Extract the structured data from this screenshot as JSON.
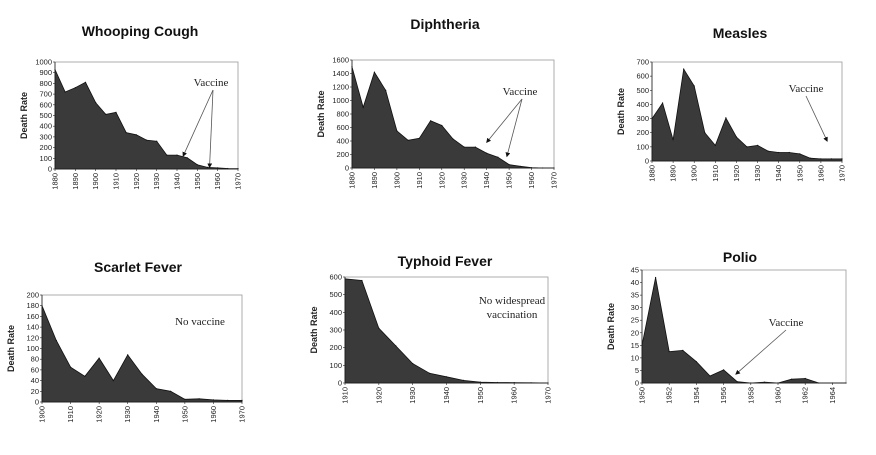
{
  "colors": {
    "area": "#3a3a3a",
    "edge": "#111111",
    "frame": "#999999",
    "arrow": "#555555"
  },
  "chart_data": [
    {
      "type": "area",
      "title": "Whooping Cough",
      "xlabel": "",
      "ylabel": "Death Rate",
      "x": [
        1880,
        1885,
        1890,
        1895,
        1900,
        1905,
        1910,
        1915,
        1920,
        1925,
        1930,
        1935,
        1940,
        1945,
        1950,
        1955,
        1960,
        1965,
        1970
      ],
      "values": [
        930,
        720,
        760,
        810,
        620,
        510,
        530,
        340,
        320,
        270,
        260,
        130,
        130,
        105,
        40,
        15,
        10,
        5,
        3
      ],
      "xlim": [
        1880,
        1970
      ],
      "ylim": [
        0,
        1000
      ],
      "xticks": [
        1880,
        1890,
        1900,
        1910,
        1920,
        1930,
        1940,
        1950,
        1960,
        1970
      ],
      "yticks": [
        0,
        100,
        200,
        300,
        400,
        500,
        600,
        700,
        800,
        900,
        1000
      ],
      "annotation": {
        "text": "Vaccine",
        "targets": [
          [
            1943,
            120
          ],
          [
            1956,
            15
          ]
        ]
      }
    },
    {
      "type": "area",
      "title": "Diphtheria",
      "xlabel": "",
      "ylabel": "Death Rate",
      "x": [
        1880,
        1885,
        1890,
        1895,
        1900,
        1905,
        1910,
        1915,
        1920,
        1925,
        1930,
        1935,
        1940,
        1945,
        1950,
        1955,
        1960,
        1965,
        1970
      ],
      "values": [
        1500,
        900,
        1420,
        1150,
        550,
        410,
        440,
        700,
        630,
        430,
        310,
        310,
        220,
        160,
        50,
        25,
        5,
        0,
        0
      ],
      "xlim": [
        1880,
        1970
      ],
      "ylim": [
        0,
        1600
      ],
      "xticks": [
        1880,
        1890,
        1900,
        1910,
        1920,
        1930,
        1940,
        1950,
        1960,
        1970
      ],
      "yticks": [
        0,
        200,
        400,
        600,
        800,
        1000,
        1200,
        1400,
        1600
      ],
      "annotation": {
        "text": "Vaccine",
        "targets": [
          [
            1940,
            380
          ],
          [
            1949,
            170
          ]
        ]
      }
    },
    {
      "type": "area",
      "title": "Measles",
      "xlabel": "",
      "ylabel": "Death Rate",
      "x": [
        1880,
        1885,
        1890,
        1895,
        1900,
        1905,
        1910,
        1915,
        1920,
        1925,
        1930,
        1935,
        1940,
        1945,
        1950,
        1955,
        1960,
        1965,
        1970
      ],
      "values": [
        300,
        410,
        150,
        650,
        530,
        200,
        110,
        305,
        170,
        100,
        110,
        70,
        60,
        60,
        50,
        20,
        15,
        15,
        15
      ],
      "xlim": [
        1880,
        1970
      ],
      "ylim": [
        0,
        700
      ],
      "xticks": [
        1880,
        1890,
        1900,
        1910,
        1920,
        1930,
        1940,
        1950,
        1960,
        1970
      ],
      "yticks": [
        0,
        100,
        200,
        300,
        400,
        500,
        600,
        700
      ],
      "annotation": {
        "text": "Vaccine",
        "targets": [
          [
            1963,
            140
          ]
        ]
      }
    },
    {
      "type": "area",
      "title": "Scarlet Fever",
      "xlabel": "",
      "ylabel": "Death Rate",
      "x": [
        1900,
        1905,
        1910,
        1915,
        1920,
        1925,
        1930,
        1935,
        1940,
        1945,
        1950,
        1955,
        1960,
        1965,
        1970
      ],
      "values": [
        180,
        115,
        65,
        48,
        82,
        40,
        88,
        52,
        25,
        20,
        5,
        6,
        4,
        3,
        3
      ],
      "xlim": [
        1900,
        1970
      ],
      "ylim": [
        0,
        200
      ],
      "xticks": [
        1900,
        1910,
        1920,
        1930,
        1940,
        1950,
        1960,
        1970
      ],
      "yticks": [
        0,
        20,
        40,
        60,
        80,
        100,
        120,
        140,
        160,
        180,
        200
      ],
      "annotation": {
        "text": "No vaccine",
        "targets": []
      }
    },
    {
      "type": "area",
      "title": "Typhoid Fever",
      "xlabel": "",
      "ylabel": "Death Rate",
      "x": [
        1910,
        1915,
        1920,
        1925,
        1930,
        1935,
        1940,
        1945,
        1950,
        1955,
        1960,
        1965,
        1970
      ],
      "values": [
        590,
        580,
        310,
        210,
        110,
        55,
        35,
        15,
        5,
        3,
        2,
        1,
        0
      ],
      "xlim": [
        1910,
        1970
      ],
      "ylim": [
        0,
        600
      ],
      "xticks": [
        1910,
        1920,
        1930,
        1940,
        1950,
        1960,
        1970
      ],
      "yticks": [
        0,
        100,
        200,
        300,
        400,
        500,
        600
      ],
      "annotation": {
        "text": "No widespread",
        "text2": "vaccination",
        "targets": []
      }
    },
    {
      "type": "area",
      "title": "Polio",
      "xlabel": "",
      "ylabel": "Death Rate",
      "x": [
        1950,
        1951,
        1952,
        1953,
        1954,
        1955,
        1956,
        1957,
        1958,
        1959,
        1960,
        1961,
        1962,
        1963,
        1964,
        1965
      ],
      "values": [
        15,
        42,
        12.5,
        13,
        8.5,
        2.8,
        5.2,
        0.5,
        0,
        0.3,
        0,
        1.5,
        1.8,
        0,
        0,
        0
      ],
      "xlim": [
        1950,
        1965
      ],
      "ylim": [
        0,
        45
      ],
      "xticks": [
        1950,
        1952,
        1954,
        1956,
        1958,
        1960,
        1962,
        1964
      ],
      "yticks": [
        0,
        5,
        10,
        15,
        20,
        25,
        30,
        35,
        40,
        45
      ],
      "annotation": {
        "text": "Vaccine",
        "targets": [
          [
            1956.9,
            3.5
          ]
        ]
      }
    }
  ]
}
